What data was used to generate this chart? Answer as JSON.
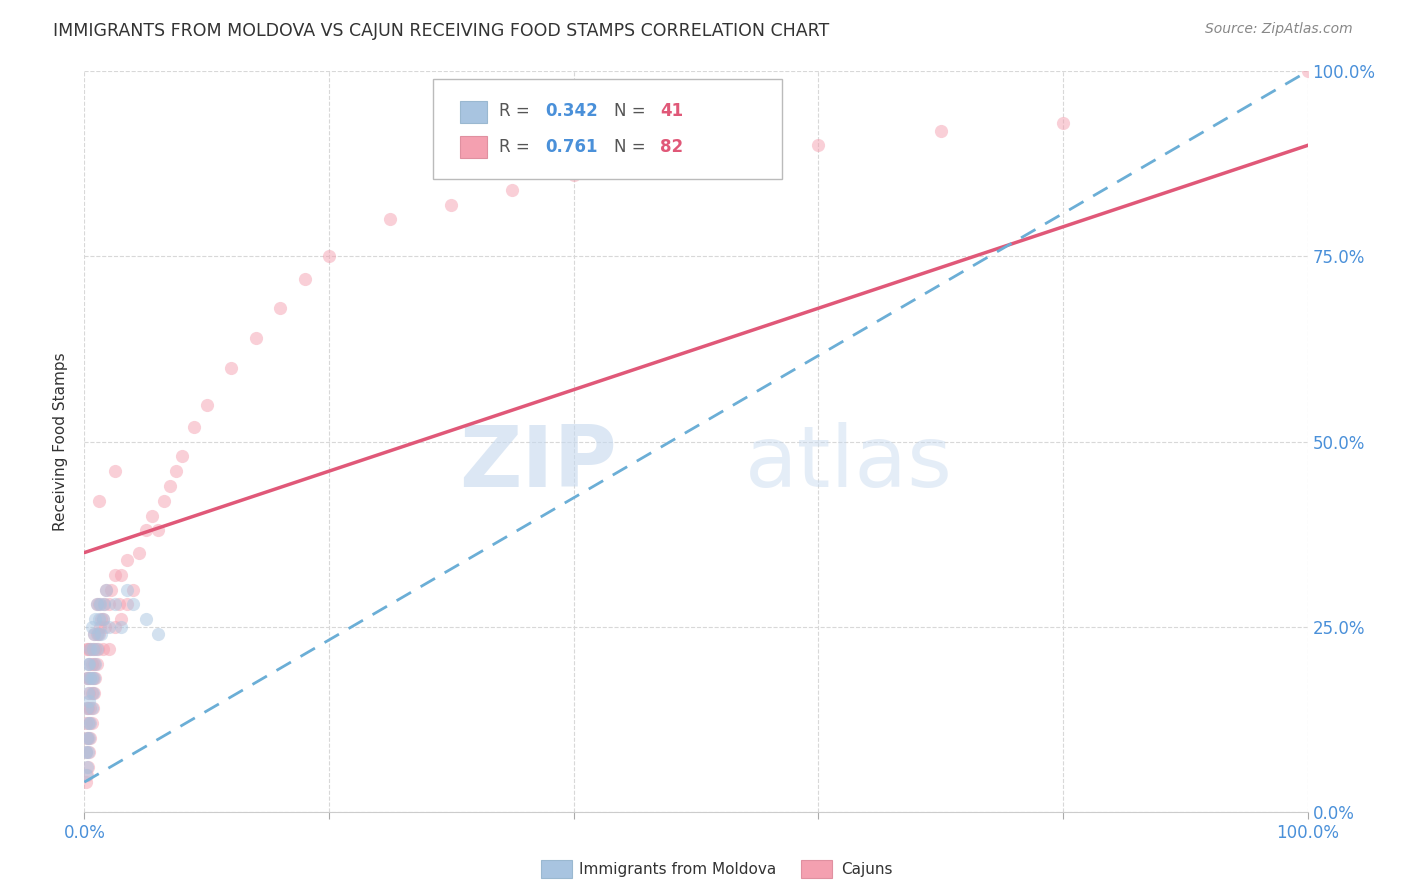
{
  "title": "IMMIGRANTS FROM MOLDOVA VS CAJUN RECEIVING FOOD STAMPS CORRELATION CHART",
  "source": "Source: ZipAtlas.com",
  "ylabel_label": "Receiving Food Stamps",
  "x_tick_positions": [
    0,
    0.2,
    0.4,
    0.6,
    0.8,
    1.0
  ],
  "y_tick_positions": [
    0,
    0.25,
    0.5,
    0.75,
    1.0
  ],
  "y_tick_labels": [
    "0.0%",
    "25.0%",
    "50.0%",
    "75.0%",
    "100.0%"
  ],
  "legend_label1": "Immigrants from Moldova",
  "legend_label2": "Cajuns",
  "R1": "0.342",
  "N1": "41",
  "R2": "0.761",
  "N2": "82",
  "color_moldova": "#a8c4e0",
  "color_cajun": "#f4a0b0",
  "line_color_moldova": "#6baed6",
  "line_color_cajun": "#e05878",
  "watermark_zip": "ZIP",
  "watermark_atlas": "atlas",
  "background_color": "#ffffff",
  "grid_color": "#d8d8d8",
  "scatter_alpha": 0.5,
  "scatter_size": 90,
  "moldova_x": [
    0.001,
    0.001,
    0.002,
    0.002,
    0.002,
    0.002,
    0.003,
    0.003,
    0.003,
    0.003,
    0.004,
    0.004,
    0.004,
    0.005,
    0.005,
    0.005,
    0.006,
    0.006,
    0.006,
    0.007,
    0.007,
    0.008,
    0.008,
    0.009,
    0.009,
    0.01,
    0.01,
    0.011,
    0.012,
    0.013,
    0.014,
    0.015,
    0.016,
    0.018,
    0.02,
    0.025,
    0.03,
    0.035,
    0.04,
    0.05,
    0.06
  ],
  "moldova_y": [
    0.05,
    0.08,
    0.06,
    0.1,
    0.14,
    0.18,
    0.08,
    0.12,
    0.16,
    0.2,
    0.1,
    0.15,
    0.2,
    0.12,
    0.18,
    0.22,
    0.14,
    0.18,
    0.25,
    0.16,
    0.22,
    0.18,
    0.24,
    0.2,
    0.26,
    0.22,
    0.28,
    0.24,
    0.26,
    0.28,
    0.24,
    0.26,
    0.28,
    0.3,
    0.25,
    0.28,
    0.25,
    0.3,
    0.28,
    0.26,
    0.24
  ],
  "cajun_x": [
    0.001,
    0.001,
    0.001,
    0.002,
    0.002,
    0.002,
    0.002,
    0.002,
    0.003,
    0.003,
    0.003,
    0.003,
    0.003,
    0.004,
    0.004,
    0.004,
    0.004,
    0.005,
    0.005,
    0.005,
    0.005,
    0.006,
    0.006,
    0.006,
    0.007,
    0.007,
    0.007,
    0.008,
    0.008,
    0.008,
    0.009,
    0.009,
    0.01,
    0.01,
    0.01,
    0.011,
    0.012,
    0.012,
    0.013,
    0.014,
    0.015,
    0.015,
    0.016,
    0.017,
    0.018,
    0.02,
    0.02,
    0.022,
    0.025,
    0.025,
    0.028,
    0.03,
    0.03,
    0.035,
    0.035,
    0.04,
    0.045,
    0.05,
    0.055,
    0.06,
    0.065,
    0.07,
    0.075,
    0.08,
    0.09,
    0.1,
    0.12,
    0.14,
    0.16,
    0.18,
    0.2,
    0.25,
    0.3,
    0.35,
    0.4,
    0.5,
    0.6,
    0.7,
    0.8,
    0.012,
    0.025,
    1.0
  ],
  "cajun_y": [
    0.04,
    0.08,
    0.12,
    0.05,
    0.1,
    0.14,
    0.18,
    0.22,
    0.06,
    0.1,
    0.14,
    0.18,
    0.22,
    0.08,
    0.12,
    0.16,
    0.2,
    0.1,
    0.14,
    0.18,
    0.22,
    0.12,
    0.16,
    0.2,
    0.14,
    0.18,
    0.22,
    0.16,
    0.2,
    0.24,
    0.18,
    0.22,
    0.2,
    0.24,
    0.28,
    0.22,
    0.24,
    0.28,
    0.25,
    0.26,
    0.22,
    0.26,
    0.28,
    0.25,
    0.3,
    0.22,
    0.28,
    0.3,
    0.25,
    0.32,
    0.28,
    0.26,
    0.32,
    0.28,
    0.34,
    0.3,
    0.35,
    0.38,
    0.4,
    0.38,
    0.42,
    0.44,
    0.46,
    0.48,
    0.52,
    0.55,
    0.6,
    0.64,
    0.68,
    0.72,
    0.75,
    0.8,
    0.82,
    0.84,
    0.86,
    0.88,
    0.9,
    0.92,
    0.93,
    0.42,
    0.46,
    1.0
  ],
  "cajun_line_x0": 0.0,
  "cajun_line_y0": 0.35,
  "cajun_line_x1": 1.0,
  "cajun_line_y1": 0.9,
  "moldova_line_x0": 0.0,
  "moldova_line_y0": 0.04,
  "moldova_line_x1": 1.0,
  "moldova_line_y1": 1.0
}
